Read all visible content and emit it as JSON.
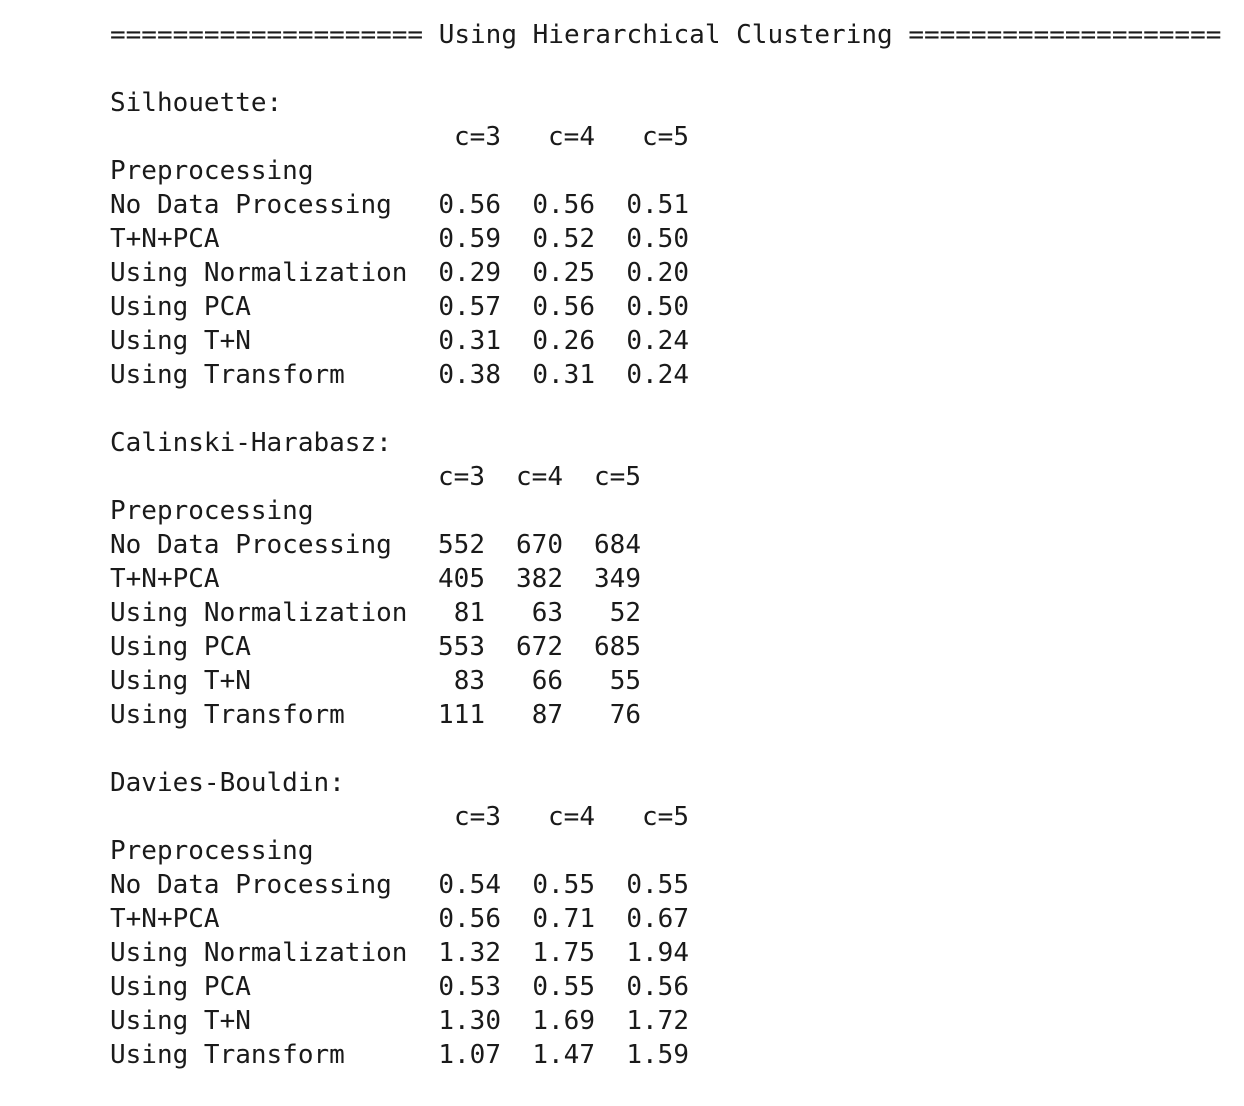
{
  "header": {
    "title": "==================== Using Hierarchical Clustering ===================="
  },
  "sections": [
    {
      "title": "Silhouette:",
      "index_label": "Preprocessing",
      "columns": [
        "c=3",
        "c=4",
        "c=5"
      ],
      "rows": [
        {
          "label": "No Data Processing",
          "values": [
            "0.56",
            "0.56",
            "0.51"
          ]
        },
        {
          "label": "T+N+PCA",
          "values": [
            "0.59",
            "0.52",
            "0.50"
          ]
        },
        {
          "label": "Using Normalization",
          "values": [
            "0.29",
            "0.25",
            "0.20"
          ]
        },
        {
          "label": "Using PCA",
          "values": [
            "0.57",
            "0.56",
            "0.50"
          ]
        },
        {
          "label": "Using T+N",
          "values": [
            "0.31",
            "0.26",
            "0.24"
          ]
        },
        {
          "label": "Using Transform",
          "values": [
            "0.38",
            "0.31",
            "0.24"
          ]
        }
      ]
    },
    {
      "title": "Calinski-Harabasz:",
      "index_label": "Preprocessing",
      "columns": [
        "c=3",
        "c=4",
        "c=5"
      ],
      "rows": [
        {
          "label": "No Data Processing",
          "values": [
            "552",
            "670",
            "684"
          ]
        },
        {
          "label": "T+N+PCA",
          "values": [
            "405",
            "382",
            "349"
          ]
        },
        {
          "label": "Using Normalization",
          "values": [
            "81",
            "63",
            "52"
          ]
        },
        {
          "label": "Using PCA",
          "values": [
            "553",
            "672",
            "685"
          ]
        },
        {
          "label": "Using T+N",
          "values": [
            "83",
            "66",
            "55"
          ]
        },
        {
          "label": "Using Transform",
          "values": [
            "111",
            "87",
            "76"
          ]
        }
      ]
    },
    {
      "title": "Davies-Bouldin:",
      "index_label": "Preprocessing",
      "columns": [
        "c=3",
        "c=4",
        "c=5"
      ],
      "rows": [
        {
          "label": "No Data Processing",
          "values": [
            "0.54",
            "0.55",
            "0.55"
          ]
        },
        {
          "label": "T+N+PCA",
          "values": [
            "0.56",
            "0.71",
            "0.67"
          ]
        },
        {
          "label": "Using Normalization",
          "values": [
            "1.32",
            "1.75",
            "1.94"
          ]
        },
        {
          "label": "Using PCA",
          "values": [
            "0.53",
            "0.55",
            "0.56"
          ]
        },
        {
          "label": "Using T+N",
          "values": [
            "1.30",
            "1.69",
            "1.72"
          ]
        },
        {
          "label": "Using Transform",
          "values": [
            "1.07",
            "1.47",
            "1.59"
          ]
        }
      ]
    }
  ]
}
